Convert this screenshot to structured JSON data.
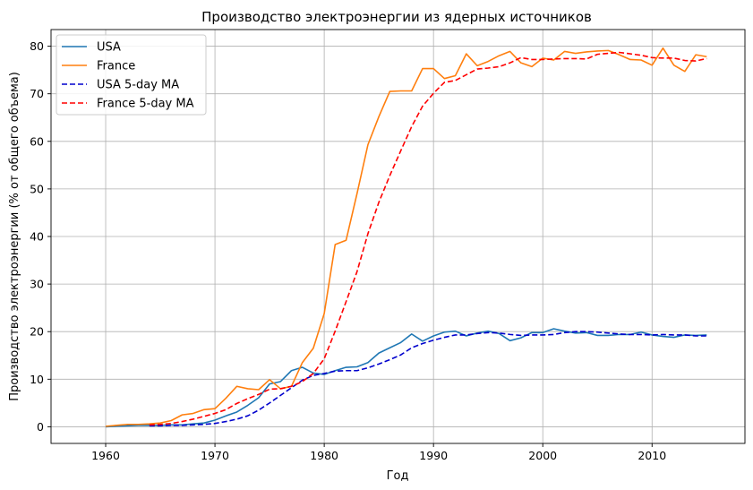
{
  "chart_data": {
    "type": "line",
    "title": "Производство электроэнергии из ядерных источников",
    "xlabel": "Год",
    "ylabel": "Производство электроэнергии (% от общего объема)",
    "xlim": [
      1955,
      2018.5
    ],
    "ylim": [
      -3.5,
      83.5
    ],
    "xticks": [
      1960,
      1970,
      1980,
      1990,
      2000,
      2010
    ],
    "yticks": [
      0,
      10,
      20,
      30,
      40,
      50,
      60,
      70,
      80
    ],
    "grid": true,
    "legend_position": "top-left",
    "x": [
      1960,
      1961,
      1962,
      1963,
      1964,
      1965,
      1966,
      1967,
      1968,
      1969,
      1970,
      1971,
      1972,
      1973,
      1974,
      1975,
      1976,
      1977,
      1978,
      1979,
      1980,
      1981,
      1982,
      1983,
      1984,
      1985,
      1986,
      1987,
      1988,
      1989,
      1990,
      1991,
      1992,
      1993,
      1994,
      1995,
      1996,
      1997,
      1998,
      1999,
      2000,
      2001,
      2002,
      2003,
      2004,
      2005,
      2006,
      2007,
      2008,
      2009,
      2010,
      2011,
      2012,
      2013,
      2014,
      2015
    ],
    "series": [
      {
        "name": "USA",
        "color": "#1f77b4",
        "dash": "solid",
        "values": [
          0.0,
          0.1,
          0.2,
          0.3,
          0.3,
          0.3,
          0.4,
          0.4,
          0.6,
          0.8,
          1.4,
          2.3,
          3.1,
          4.5,
          6.1,
          9.0,
          9.5,
          11.8,
          12.5,
          11.3,
          11.0,
          11.8,
          12.5,
          12.6,
          13.5,
          15.5,
          16.6,
          17.7,
          19.5,
          18.0,
          19.1,
          19.9,
          20.1,
          19.1,
          19.7,
          20.1,
          19.6,
          18.1,
          18.7,
          19.8,
          19.8,
          20.6,
          20.1,
          19.7,
          19.8,
          19.2,
          19.2,
          19.4,
          19.4,
          19.9,
          19.3,
          19.0,
          18.8,
          19.3,
          19.2,
          19.3
        ]
      },
      {
        "name": "France",
        "color": "#ff7f0e",
        "dash": "solid",
        "values": [
          0.1,
          0.3,
          0.5,
          0.5,
          0.6,
          0.8,
          1.3,
          2.5,
          2.8,
          3.6,
          3.8,
          6.0,
          8.5,
          8.0,
          7.8,
          9.9,
          8.0,
          8.5,
          13.5,
          16.5,
          23.8,
          38.3,
          39.2,
          49.0,
          59.3,
          65.2,
          70.5,
          70.6,
          70.6,
          75.3,
          75.3,
          73.2,
          73.8,
          78.4,
          75.9,
          76.8,
          78.0,
          78.9,
          76.5,
          75.7,
          77.5,
          77.1,
          78.9,
          78.5,
          78.8,
          79.0,
          79.1,
          78.2,
          77.2,
          77.1,
          76.0,
          79.6,
          76.0,
          74.7,
          78.2,
          77.8
        ]
      },
      {
        "name": "USA 5-day MA",
        "color": "#0000cd",
        "dash": "dashed",
        "values": [
          null,
          null,
          null,
          null,
          0.2,
          0.2,
          0.3,
          0.3,
          0.4,
          0.5,
          0.7,
          1.1,
          1.6,
          2.3,
          3.5,
          5.0,
          6.6,
          8.2,
          9.8,
          10.8,
          11.2,
          11.7,
          11.8,
          11.8,
          12.4,
          13.2,
          14.1,
          15.1,
          16.6,
          17.5,
          18.2,
          18.8,
          19.3,
          19.3,
          19.6,
          19.8,
          19.7,
          19.4,
          19.2,
          19.3,
          19.3,
          19.4,
          19.8,
          20.0,
          20.0,
          19.9,
          19.7,
          19.5,
          19.4,
          19.4,
          19.3,
          19.4,
          19.3,
          19.3,
          19.1,
          19.1
        ]
      },
      {
        "name": "France 5-day MA",
        "color": "#ff0000",
        "dash": "dashed",
        "values": [
          null,
          null,
          null,
          null,
          0.4,
          0.5,
          0.7,
          1.1,
          1.6,
          2.2,
          2.8,
          3.6,
          4.9,
          5.9,
          6.8,
          7.9,
          8.0,
          8.5,
          9.5,
          11.2,
          14.3,
          20.1,
          26.3,
          32.6,
          40.6,
          47.2,
          52.8,
          58.0,
          63.1,
          67.4,
          70.1,
          72.4,
          72.8,
          74.0,
          75.2,
          75.4,
          75.7,
          76.5,
          77.6,
          77.2,
          77.2,
          77.3,
          77.4,
          77.4,
          77.3,
          78.3,
          78.5,
          78.7,
          78.4,
          78.1,
          77.6,
          77.5,
          77.5,
          77.0,
          76.9,
          77.4
        ]
      }
    ]
  }
}
